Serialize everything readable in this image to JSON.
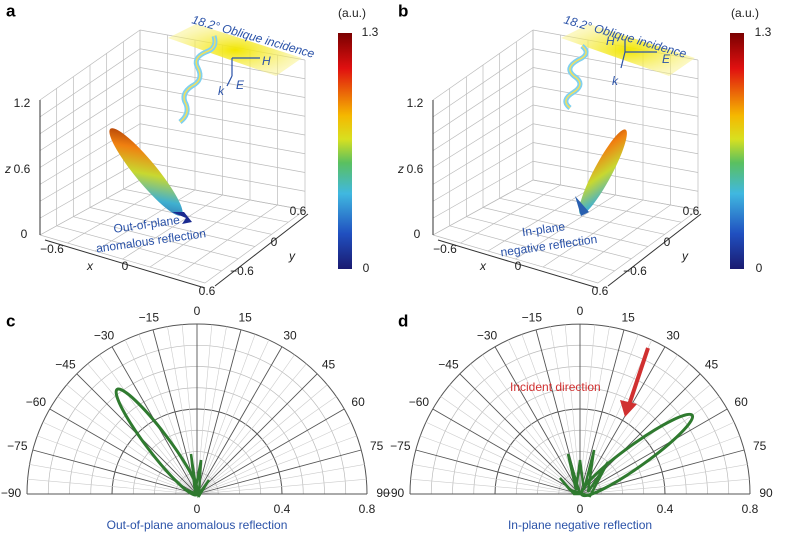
{
  "panels": [
    {
      "label": "a",
      "axis_labels": {
        "x": "x",
        "y": "y",
        "z": "z"
      },
      "z_ticks": [
        "0",
        "0.6",
        "1.2"
      ],
      "x_ticks": [
        "−0.6",
        "0",
        "0.6"
      ],
      "y_ticks": [
        "−0.6",
        "0",
        "0.6"
      ],
      "colorbar": {
        "unit": "(a.u.)",
        "max": "1.3",
        "min": "0"
      },
      "annotations": {
        "incidence": "18.2° Oblique incidence",
        "h": "H",
        "e": "E",
        "k": "k",
        "line1": "Out-of-plane",
        "line2": "anomalous reflection"
      }
    },
    {
      "label": "b",
      "axis_labels": {
        "x": "x",
        "y": "y",
        "z": "z"
      },
      "z_ticks": [
        "0",
        "0.6",
        "1.2"
      ],
      "x_ticks": [
        "−0.6",
        "0",
        "0.6"
      ],
      "y_ticks": [
        "−0.6",
        "0",
        "0.6"
      ],
      "colorbar": {
        "unit": "(a.u.)",
        "max": "1.3",
        "min": "0"
      },
      "annotations": {
        "incidence": "18.2° Oblique incidence",
        "h": "H",
        "e": "E",
        "k": "k",
        "line1": "In-plane",
        "line2": "negative reflection"
      }
    },
    {
      "label": "c",
      "angle_ticks": [
        "−90",
        "−75",
        "−60",
        "−45",
        "−30",
        "−15",
        "0",
        "15",
        "30",
        "45",
        "60",
        "75",
        "90"
      ],
      "radial_ticks": [
        "0",
        "0.4",
        "0.8"
      ],
      "caption": "Out-of-plane anomalous reflection"
    },
    {
      "label": "d",
      "angle_ticks": [
        "−90",
        "−75",
        "−60",
        "−45",
        "−30",
        "−15",
        "0",
        "15",
        "30",
        "45",
        "60",
        "75",
        "90"
      ],
      "radial_ticks": [
        "0",
        "0.4",
        "0.8"
      ],
      "caption": "In-plane negative reflection",
      "annotation": "Incident direction"
    }
  ]
}
